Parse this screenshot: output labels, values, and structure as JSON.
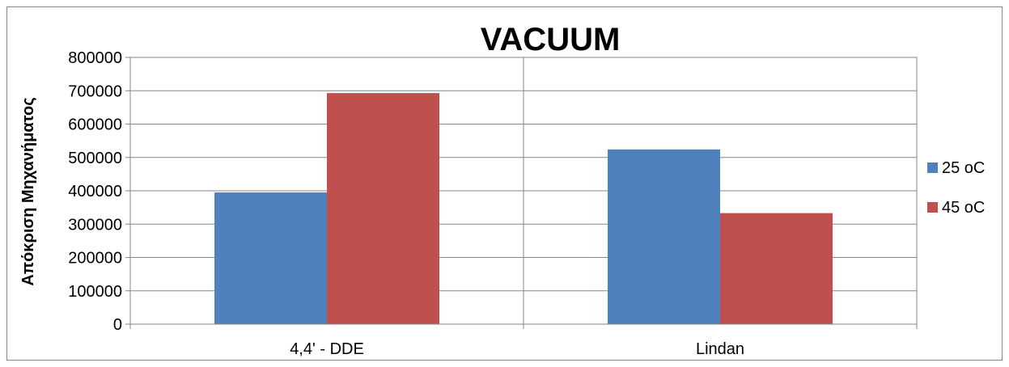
{
  "chart_data": {
    "type": "bar",
    "title": "VACUUM",
    "xlabel": "",
    "ylabel": "Απόκριση Μηχανήματος",
    "categories": [
      "4,4' - DDE",
      "Lindan"
    ],
    "series": [
      {
        "name": "25 oC",
        "values": [
          395000,
          524000
        ],
        "color": "#4F81BD"
      },
      {
        "name": "45 oC",
        "values": [
          693000,
          333000
        ],
        "color": "#C0504D"
      }
    ],
    "ylim": [
      0,
      800000
    ],
    "yticks": [
      0,
      100000,
      200000,
      300000,
      400000,
      500000,
      600000,
      700000,
      800000
    ],
    "ytick_labels": [
      "0",
      "100000",
      "200000",
      "300000",
      "400000",
      "500000",
      "600000",
      "700000",
      "800000"
    ],
    "grid": true,
    "legend_position": "right"
  }
}
